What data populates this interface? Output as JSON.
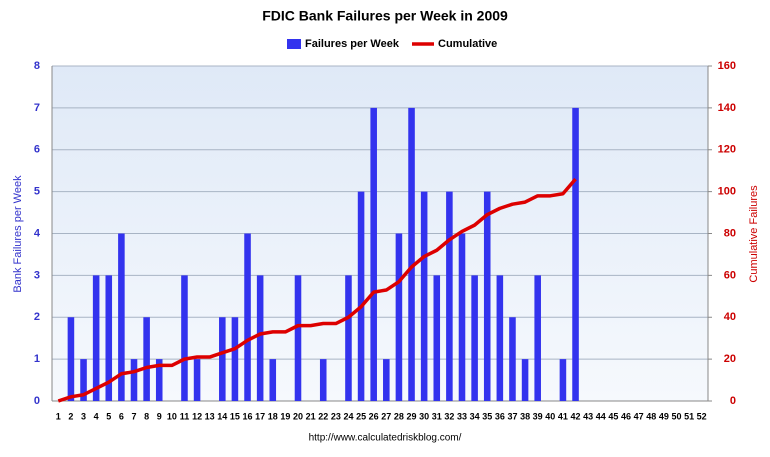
{
  "chart_data": {
    "type": "bar_line",
    "title": "FDIC Bank Failures per Week in 2009",
    "y_label": "Bank Failures per Week",
    "y2_label": "Cumulative Failures",
    "footer": "http://www.calculatedriskblog.com/",
    "categories": [
      "1",
      "2",
      "3",
      "4",
      "5",
      "6",
      "7",
      "8",
      "9",
      "10",
      "11",
      "12",
      "13",
      "14",
      "15",
      "16",
      "17",
      "18",
      "19",
      "20",
      "21",
      "22",
      "23",
      "24",
      "25",
      "26",
      "27",
      "28",
      "29",
      "30",
      "31",
      "32",
      "33",
      "34",
      "35",
      "36",
      "37",
      "38",
      "39",
      "40",
      "41",
      "42",
      "43",
      "44",
      "45",
      "46",
      "47",
      "48",
      "49",
      "50",
      "51",
      "52"
    ],
    "series": [
      {
        "name": "Failures per Week",
        "type": "bar",
        "color": "#3333ee",
        "values": [
          0,
          2,
          1,
          3,
          3,
          4,
          1,
          2,
          1,
          0,
          3,
          1,
          0,
          2,
          2,
          4,
          3,
          1,
          0,
          3,
          0,
          1,
          0,
          3,
          5,
          7,
          1,
          4,
          7,
          5,
          3,
          5,
          4,
          3,
          5,
          3,
          2,
          1,
          3,
          0,
          1,
          7,
          null,
          null,
          null,
          null,
          null,
          null,
          null,
          null,
          null,
          null
        ]
      },
      {
        "name": "Cumulative",
        "type": "line",
        "axis": "y2",
        "color": "#dd0000",
        "values": [
          0,
          2,
          3,
          6,
          9,
          13,
          14,
          16,
          17,
          17,
          20,
          21,
          21,
          23,
          25,
          29,
          32,
          33,
          33,
          36,
          36,
          37,
          37,
          40,
          45,
          52,
          53,
          57,
          64,
          69,
          72,
          77,
          81,
          84,
          89,
          92,
          94,
          95,
          98,
          98,
          99,
          106,
          null,
          null,
          null,
          null,
          null,
          null,
          null,
          null,
          null,
          null
        ]
      }
    ],
    "ylim": [
      0,
      8
    ],
    "yticks": [
      0,
      1,
      2,
      3,
      4,
      5,
      6,
      7,
      8
    ],
    "y2lim": [
      0,
      160
    ],
    "y2ticks": [
      0,
      20,
      40,
      60,
      80,
      100,
      120,
      140,
      160
    ],
    "grid": true
  }
}
